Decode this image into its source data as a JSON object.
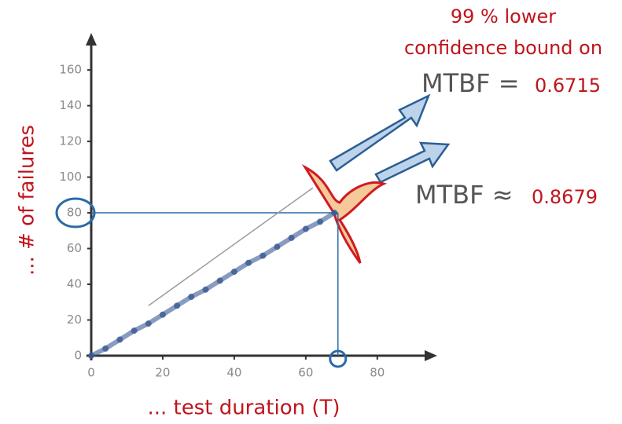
{
  "chart_data": {
    "type": "line",
    "x_label": "... test duration (T)",
    "y_label": "... # of failures",
    "annotations": {
      "heading": [
        "99 % lower",
        "confidence bound on"
      ],
      "lower_bound": {
        "label": "MTBF =",
        "value": 0.6715
      },
      "estimate": {
        "label": "MTBF ≈",
        "value": 0.8679
      }
    },
    "x": [
      0,
      4,
      8,
      12,
      16,
      20,
      24,
      28,
      32,
      36,
      40,
      44,
      48,
      52,
      56,
      60,
      64,
      68
    ],
    "series": [
      {
        "color": "#3b5a94",
        "values": [
          0,
          4,
          9,
          14,
          18,
          23,
          28,
          33,
          37,
          42,
          47,
          52,
          56,
          61,
          66,
          71,
          75,
          80
        ]
      }
    ],
    "fit_line": {
      "x": [
        16,
        62
      ],
      "values": [
        28,
        94
      ],
      "color": "#9a9a9a"
    },
    "reference_point": {
      "x": 69,
      "y": 80
    },
    "xlim": [
      0,
      95
    ],
    "ylim": [
      0,
      175
    ],
    "xticks": [
      0,
      20,
      40,
      60,
      80
    ],
    "yticks": [
      0,
      20,
      40,
      60,
      80,
      100,
      120,
      140,
      160
    ]
  }
}
